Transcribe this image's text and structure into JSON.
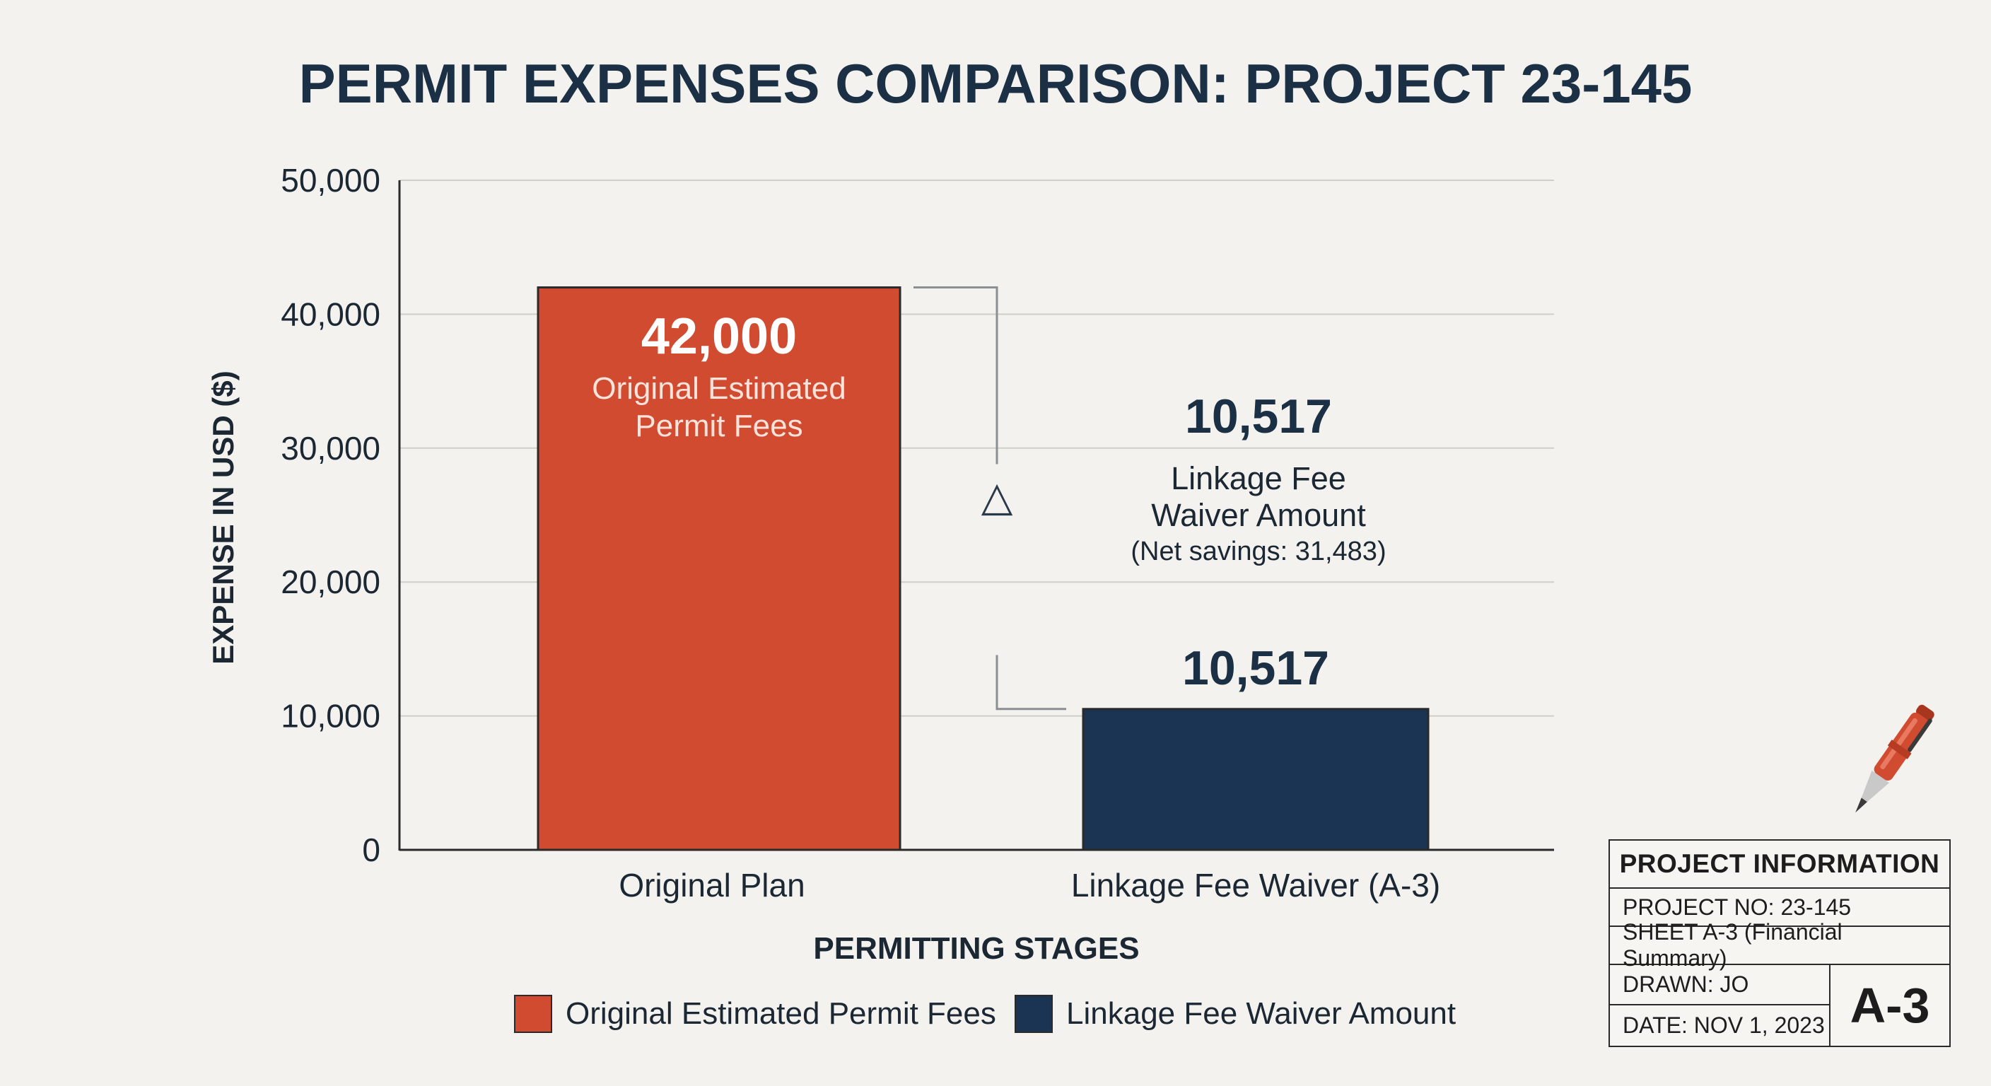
{
  "title": "PERMIT EXPENSES COMPARISON: PROJECT 23-145",
  "colors": {
    "original": "#d14b30",
    "waiver": "#1b3453",
    "title": "#1b2f45",
    "text": "#1b2733",
    "grid": "#cfcfca",
    "background": "#f3f2ee"
  },
  "chart_data": {
    "type": "bar",
    "title": "PERMIT EXPENSES COMPARISON: PROJECT 23-145",
    "xlabel": "PERMITTING STAGES",
    "ylabel": "EXPENSE IN USD ($)",
    "ylim": [
      0,
      50000
    ],
    "yticks": [
      "0",
      "10,000",
      "20,000",
      "30,000",
      "40,000",
      "50,000"
    ],
    "grid": true,
    "categories": [
      "Original Plan",
      "Linkage Fee Waiver (A-3)"
    ],
    "values": [
      42000,
      10517
    ],
    "bar_labels": {
      "original_value": "42,000",
      "original_line1": "Original Estimated",
      "original_line2": "Permit Fees",
      "waiver_value": "10,517"
    },
    "annotation": {
      "symbol": "△",
      "value": "10,517",
      "line1": "Linkage Fee",
      "line2": "Waiver Amount",
      "line3": "(Net savings: 31,483)"
    },
    "legend": [
      {
        "label": "Original Estimated Permit Fees",
        "color": "#d14b30"
      },
      {
        "label": "Linkage Fee Waiver Amount",
        "color": "#1b3453"
      }
    ],
    "legend_position": "bottom"
  },
  "info_box": {
    "header": "PROJECT INFORMATION",
    "project_no": "PROJECT NO: 23-145",
    "sheet": "SHEET A-3 (Financial Summary)",
    "drawn": "DRAWN: JO",
    "date": "DATE: NOV 1, 2023",
    "sheet_badge": "A-3"
  },
  "icons": {
    "pen": "pen-icon"
  }
}
